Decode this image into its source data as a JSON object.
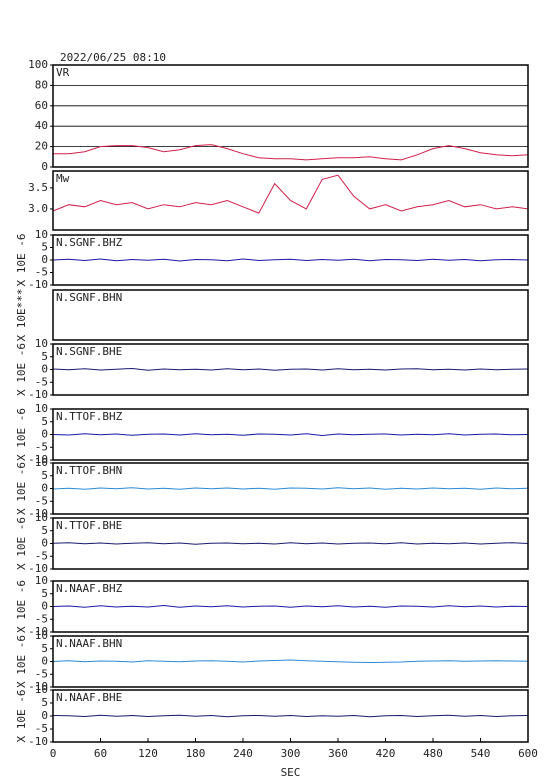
{
  "chart_data": [
    {
      "type": "line",
      "heading": "2022/06/25 08:10",
      "title": "VR",
      "grid": true,
      "x": [
        0,
        20,
        40,
        60,
        80,
        100,
        120,
        140,
        160,
        180,
        200,
        220,
        240,
        260,
        280,
        300,
        320,
        340,
        360,
        380,
        400,
        420,
        440,
        460,
        480,
        500,
        520,
        540,
        560,
        580,
        600
      ],
      "series": [
        {
          "color": "#d0204a",
          "values": [
            13,
            13,
            15,
            20,
            21,
            21,
            19,
            15,
            17,
            21,
            22,
            18,
            13,
            9,
            8,
            8,
            7,
            8,
            9,
            9,
            10,
            8,
            7,
            12,
            18,
            21,
            18,
            14,
            12,
            11,
            12
          ]
        }
      ],
      "xlim": [
        0,
        600
      ],
      "ylim": [
        0,
        100
      ],
      "yticks": [
        0,
        20,
        40,
        60,
        80,
        100
      ]
    },
    {
      "type": "line",
      "title": "Mw",
      "x": [
        0,
        20,
        40,
        60,
        80,
        100,
        120,
        140,
        160,
        180,
        200,
        220,
        240,
        260,
        280,
        300,
        320,
        340,
        360,
        380,
        400,
        420,
        440,
        460,
        480,
        500,
        520,
        540,
        560,
        580,
        600
      ],
      "series": [
        {
          "color": "#d0204a",
          "values": [
            2.95,
            3.1,
            3.05,
            3.2,
            3.1,
            3.15,
            3.0,
            3.1,
            3.05,
            3.15,
            3.1,
            3.2,
            3.05,
            2.9,
            3.6,
            3.2,
            3.0,
            3.7,
            3.8,
            3.3,
            3.0,
            3.1,
            2.95,
            3.05,
            3.1,
            3.2,
            3.05,
            3.1,
            3.0,
            3.05,
            3.0
          ]
        }
      ],
      "xlim": [
        0,
        600
      ],
      "ylim": [
        2.5,
        3.9
      ],
      "yticks": [
        {
          "value": 3,
          "label": "3.0"
        },
        3.5
      ]
    },
    {
      "type": "line",
      "title": "N.SGNF.BHZ",
      "ylabel": "X 10E -6",
      "x": [
        0,
        20,
        40,
        60,
        80,
        100,
        120,
        140,
        160,
        180,
        200,
        220,
        240,
        260,
        280,
        300,
        320,
        340,
        360,
        380,
        400,
        420,
        440,
        460,
        480,
        500,
        520,
        540,
        560,
        580,
        600
      ],
      "series": [
        {
          "color": "#1a1aa8",
          "values": [
            0,
            0.3,
            -0.2,
            0.4,
            -0.3,
            0.2,
            -0.1,
            0.3,
            -0.4,
            0.2,
            0.1,
            -0.3,
            0.4,
            -0.2,
            0.1,
            0.3,
            -0.2,
            0.2,
            -0.1,
            0.3,
            -0.3,
            0.2,
            0.1,
            -0.2,
            0.3,
            -0.1,
            0.2,
            -0.3,
            0.1,
            0.2,
            0
          ]
        }
      ],
      "xlim": [
        0,
        600
      ],
      "ylim": [
        -10,
        10
      ],
      "yticks": [
        -10,
        -5,
        0,
        5,
        10
      ]
    },
    {
      "type": "line",
      "title": "N.SGNF.BHN",
      "ylabel": "X 10E***",
      "series": [],
      "xlim": [
        0,
        600
      ]
    },
    {
      "type": "line",
      "title": "N.SGNF.BHE",
      "ylabel": "X 10E -6",
      "x": [
        0,
        20,
        40,
        60,
        80,
        100,
        120,
        140,
        160,
        180,
        200,
        220,
        240,
        260,
        280,
        300,
        320,
        340,
        360,
        380,
        400,
        420,
        440,
        460,
        480,
        500,
        520,
        540,
        560,
        580,
        600
      ],
      "series": [
        {
          "color": "#1a1a70",
          "values": [
            0.2,
            -0.1,
            0.3,
            -0.2,
            0.1,
            0.4,
            -0.3,
            0.2,
            -0.1,
            0.1,
            -0.2,
            0.3,
            -0.1,
            0.2,
            -0.3,
            0.1,
            0.2,
            -0.2,
            0.3,
            -0.1,
            0.1,
            -0.2,
            0.2,
            0.3,
            -0.1,
            0.1,
            -0.2,
            0.2,
            -0.1,
            0.1,
            0.2
          ]
        }
      ],
      "xlim": [
        0,
        600
      ],
      "ylim": [
        -10,
        10
      ],
      "yticks": [
        -10,
        -5,
        0,
        5,
        10
      ]
    },
    {
      "type": "line",
      "title": "N.TTOF.BHZ",
      "ylabel": "X 10E -6",
      "x": [
        0,
        20,
        40,
        60,
        80,
        100,
        120,
        140,
        160,
        180,
        200,
        220,
        240,
        260,
        280,
        300,
        320,
        340,
        360,
        380,
        400,
        420,
        440,
        460,
        480,
        500,
        520,
        540,
        560,
        580,
        600
      ],
      "series": [
        {
          "color": "#1a1aa8",
          "values": [
            0,
            -0.2,
            0.3,
            -0.1,
            0.2,
            -0.3,
            0.1,
            0.2,
            -0.2,
            0.3,
            -0.1,
            0.1,
            -0.3,
            0.2,
            0.1,
            -0.2,
            0.3,
            -0.4,
            0.2,
            -0.1,
            0.1,
            0.2,
            -0.2,
            0.1,
            -0.1,
            0.3,
            -0.2,
            0.1,
            0.2,
            -0.1,
            0
          ]
        }
      ],
      "xlim": [
        0,
        600
      ],
      "ylim": [
        -10,
        10
      ],
      "yticks": [
        -10,
        -5,
        0,
        5,
        10
      ]
    },
    {
      "type": "line",
      "title": "N.TTOF.BHN",
      "ylabel": "X 10E -6",
      "x": [
        0,
        20,
        40,
        60,
        80,
        100,
        120,
        140,
        160,
        180,
        200,
        220,
        240,
        260,
        280,
        300,
        320,
        340,
        360,
        380,
        400,
        420,
        440,
        460,
        480,
        500,
        520,
        540,
        560,
        580,
        600
      ],
      "series": [
        {
          "color": "#2a8ad8",
          "values": [
            -0.2,
            0.1,
            -0.3,
            0.2,
            -0.1,
            0.3,
            -0.2,
            0.1,
            -0.3,
            0.2,
            -0.1,
            0.2,
            -0.2,
            0.1,
            -0.3,
            0.2,
            0.1,
            -0.2,
            0.3,
            -0.1,
            0.2,
            -0.3,
            0.1,
            -0.2,
            0.2,
            -0.1,
            0.1,
            -0.3,
            0.2,
            -0.1,
            0.1
          ]
        }
      ],
      "xlim": [
        0,
        600
      ],
      "ylim": [
        -10,
        10
      ],
      "yticks": [
        -10,
        -5,
        0,
        5,
        10
      ]
    },
    {
      "type": "line",
      "title": "N.TTOF.BHE",
      "ylabel": "X 10E -6",
      "x": [
        0,
        20,
        40,
        60,
        80,
        100,
        120,
        140,
        160,
        180,
        200,
        220,
        240,
        260,
        280,
        300,
        320,
        340,
        360,
        380,
        400,
        420,
        440,
        460,
        480,
        500,
        520,
        540,
        560,
        580,
        600
      ],
      "series": [
        {
          "color": "#1a1a70",
          "values": [
            0.1,
            0.3,
            -0.1,
            0.2,
            -0.2,
            0.1,
            0.3,
            -0.1,
            0.2,
            -0.3,
            0.1,
            0.2,
            -0.1,
            0.1,
            -0.2,
            0.3,
            -0.1,
            0.2,
            -0.2,
            0.1,
            0.2,
            -0.1,
            0.3,
            -0.2,
            0.1,
            -0.1,
            0.2,
            -0.2,
            0.1,
            0.3,
            0
          ]
        }
      ],
      "xlim": [
        0,
        600
      ],
      "ylim": [
        -10,
        10
      ],
      "yticks": [
        -10,
        -5,
        0,
        5,
        10
      ]
    },
    {
      "type": "line",
      "title": "N.NAAF.BHZ",
      "ylabel": "X 10E -6",
      "x": [
        0,
        20,
        40,
        60,
        80,
        100,
        120,
        140,
        160,
        180,
        200,
        220,
        240,
        260,
        280,
        300,
        320,
        340,
        360,
        380,
        400,
        420,
        440,
        460,
        480,
        500,
        520,
        540,
        560,
        580,
        600
      ],
      "series": [
        {
          "color": "#1a1aa8",
          "values": [
            0,
            0.2,
            -0.3,
            0.3,
            -0.2,
            0.1,
            -0.2,
            0.4,
            -0.3,
            0.2,
            -0.1,
            0.3,
            -0.2,
            0.1,
            0.2,
            -0.3,
            0.2,
            -0.1,
            0.3,
            -0.2,
            0.1,
            -0.3,
            0.2,
            0.1,
            -0.2,
            0.3,
            -0.1,
            0.2,
            -0.2,
            0.1,
            0
          ]
        }
      ],
      "xlim": [
        0,
        600
      ],
      "ylim": [
        -10,
        10
      ],
      "yticks": [
        -10,
        -5,
        0,
        5,
        10
      ]
    },
    {
      "type": "line",
      "title": "N.NAAF.BHN",
      "ylabel": "X 10E -6",
      "x": [
        0,
        20,
        40,
        60,
        80,
        100,
        120,
        140,
        160,
        180,
        200,
        220,
        240,
        260,
        280,
        300,
        320,
        340,
        360,
        380,
        400,
        420,
        440,
        460,
        480,
        500,
        520,
        540,
        560,
        580,
        600
      ],
      "series": [
        {
          "color": "#2a8ad8",
          "values": [
            0,
            0.3,
            -0.1,
            0.2,
            0.1,
            -0.2,
            0.3,
            0.1,
            -0.1,
            0.2,
            0.3,
            0.1,
            -0.2,
            0.2,
            0.4,
            0.6,
            0.3,
            0.1,
            -0.1,
            -0.3,
            -0.4,
            -0.3,
            -0.2,
            0.1,
            0.2,
            0.3,
            0.1,
            0.2,
            0.3,
            0.2,
            0.1
          ]
        }
      ],
      "xlim": [
        0,
        600
      ],
      "ylim": [
        -10,
        10
      ],
      "yticks": [
        -10,
        -5,
        0,
        5,
        10
      ]
    },
    {
      "type": "line",
      "title": "N.NAAF.BHE",
      "ylabel": "X 10E -6",
      "xlabel": "SEC",
      "x": [
        0,
        20,
        40,
        60,
        80,
        100,
        120,
        140,
        160,
        180,
        200,
        220,
        240,
        260,
        280,
        300,
        320,
        340,
        360,
        380,
        400,
        420,
        440,
        460,
        480,
        500,
        520,
        540,
        560,
        580,
        600
      ],
      "series": [
        {
          "color": "#1a1a70",
          "values": [
            0.2,
            0.1,
            -0.2,
            0.3,
            -0.1,
            0.2,
            -0.2,
            0.1,
            0.3,
            -0.1,
            0.2,
            -0.3,
            0.1,
            0.2,
            -0.1,
            0.2,
            -0.2,
            0.1,
            -0.1,
            0.2,
            -0.3,
            0.1,
            0.2,
            -0.2,
            0.1,
            0.3,
            -0.1,
            0.2,
            -0.2,
            0.1,
            0.2
          ]
        }
      ],
      "xlim": [
        0,
        600
      ],
      "ylim": [
        -10,
        10
      ],
      "yticks": [
        -10,
        -5,
        0,
        5,
        10
      ],
      "xticks": [
        0,
        60,
        120,
        180,
        240,
        300,
        360,
        420,
        480,
        540,
        600
      ]
    }
  ]
}
